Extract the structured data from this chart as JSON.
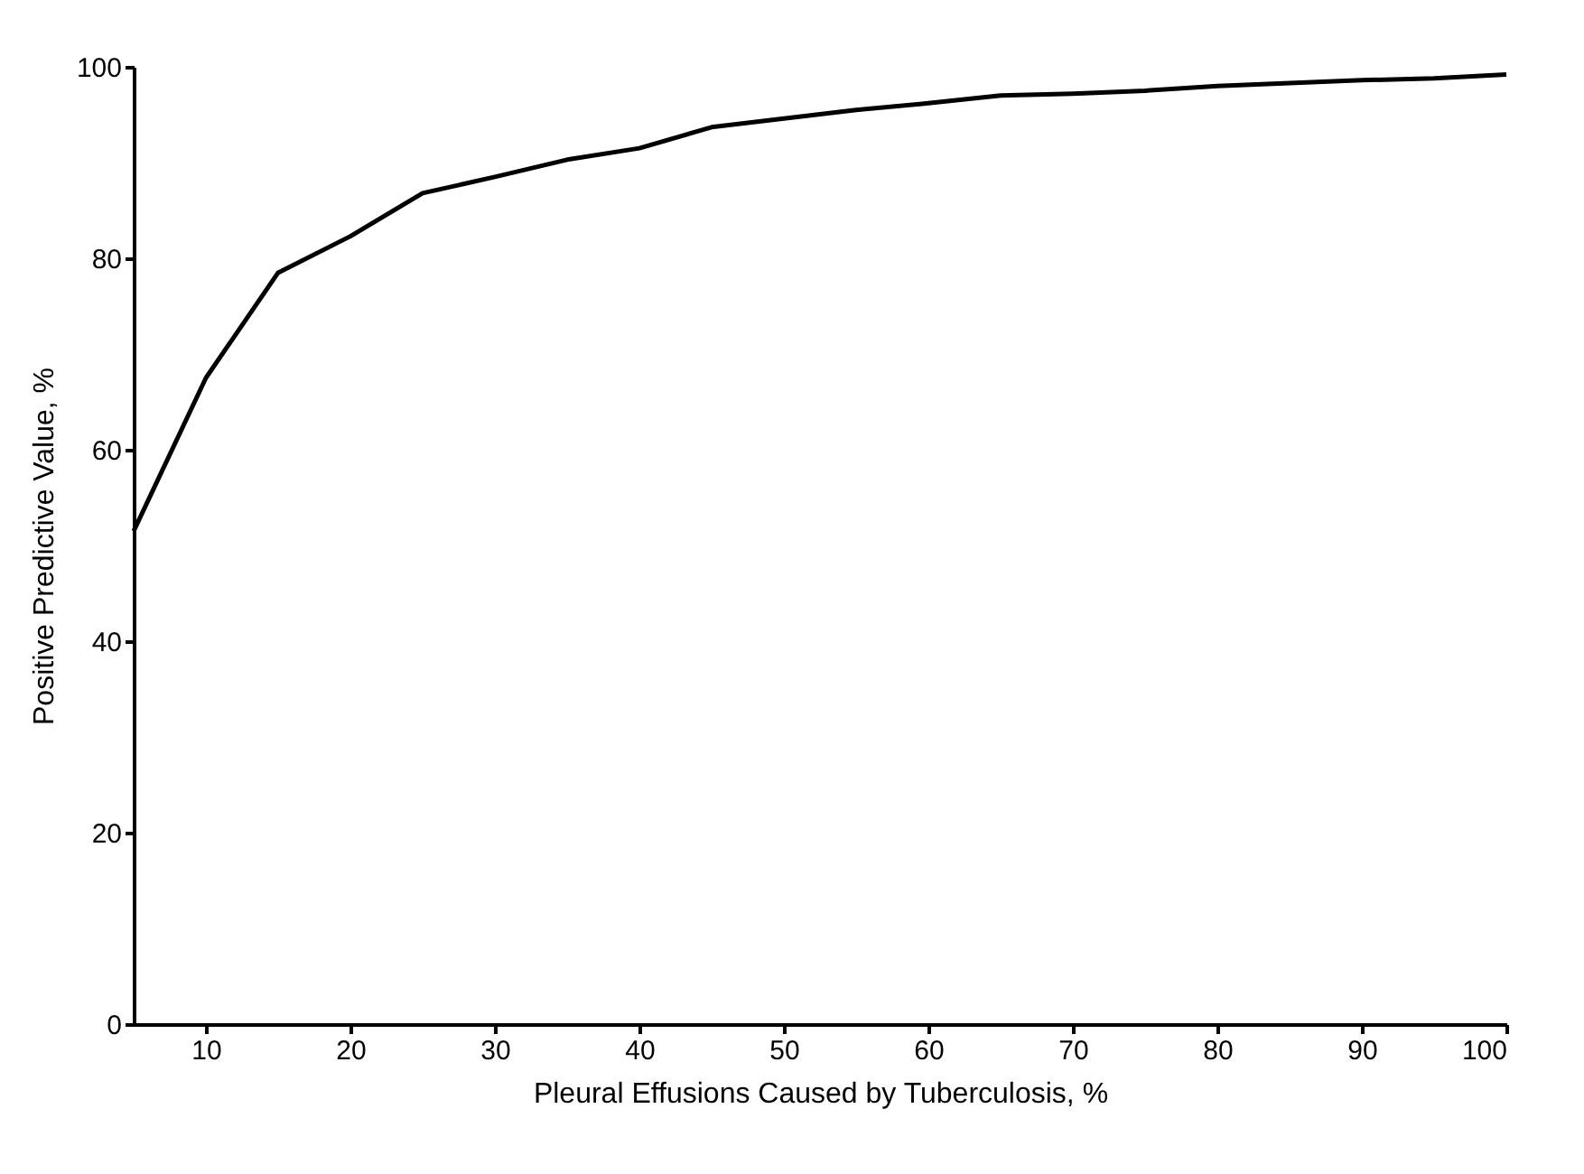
{
  "chart_data": {
    "type": "line",
    "xlabel": "Pleural Effusions Caused by Tuberculosis, %",
    "ylabel": "Positive Predictive Value, %",
    "x": [
      5,
      10,
      15,
      20,
      25,
      30,
      35,
      40,
      45,
      50,
      55,
      60,
      65,
      70,
      75,
      80,
      85,
      90,
      95,
      100
    ],
    "series": [
      {
        "color": "#000000",
        "values": [
          51.5,
          67.5,
          78.5,
          82.3,
          86.8,
          88.5,
          90.3,
          91.5,
          93.7,
          94.6,
          95.5,
          96.2,
          97.0,
          97.2,
          97.5,
          98.0,
          98.3,
          98.6,
          98.8,
          99.2
        ]
      }
    ],
    "xlim": [
      5,
      100
    ],
    "xticks": [
      10,
      20,
      30,
      40,
      50,
      60,
      70,
      80,
      90,
      100
    ],
    "ylim": [
      0,
      100
    ],
    "yticks": [
      0,
      20,
      40,
      60,
      80,
      100
    ],
    "grid": false,
    "legend": false,
    "marker": "none",
    "line_style": "solid"
  }
}
